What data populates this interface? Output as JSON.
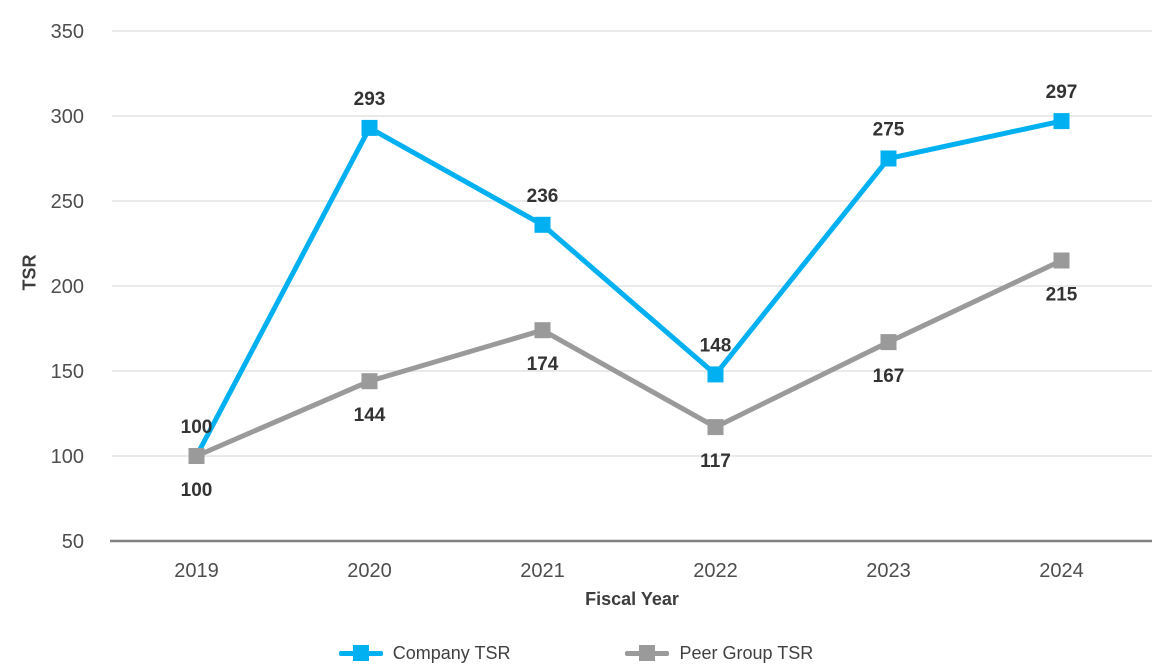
{
  "chart_data": {
    "type": "line",
    "x_categories": [
      "2019",
      "2020",
      "2021",
      "2022",
      "2023",
      "2024"
    ],
    "series": [
      {
        "name": "Company TSR",
        "color": "#00B0F0",
        "values": [
          100,
          293,
          236,
          148,
          275,
          297
        ],
        "label_position": "above",
        "marker": "square"
      },
      {
        "name": "Peer Group TSR",
        "color": "#9A9A9A",
        "values": [
          100,
          144,
          174,
          117,
          167,
          215
        ],
        "label_position": "below",
        "marker": "square"
      }
    ],
    "title": "",
    "xlabel": "Fiscal Year",
    "ylabel": "TSR",
    "y_ticks": [
      50,
      100,
      150,
      200,
      250,
      300,
      350
    ],
    "ylim": [
      50,
      350
    ],
    "grid": "horizontal",
    "legend_position": "bottom",
    "colors": {
      "gridline": "#E4E4E4",
      "axis_line": "#808080",
      "tick_text": "#4d4d4d",
      "data_label_text": "#333333"
    }
  }
}
